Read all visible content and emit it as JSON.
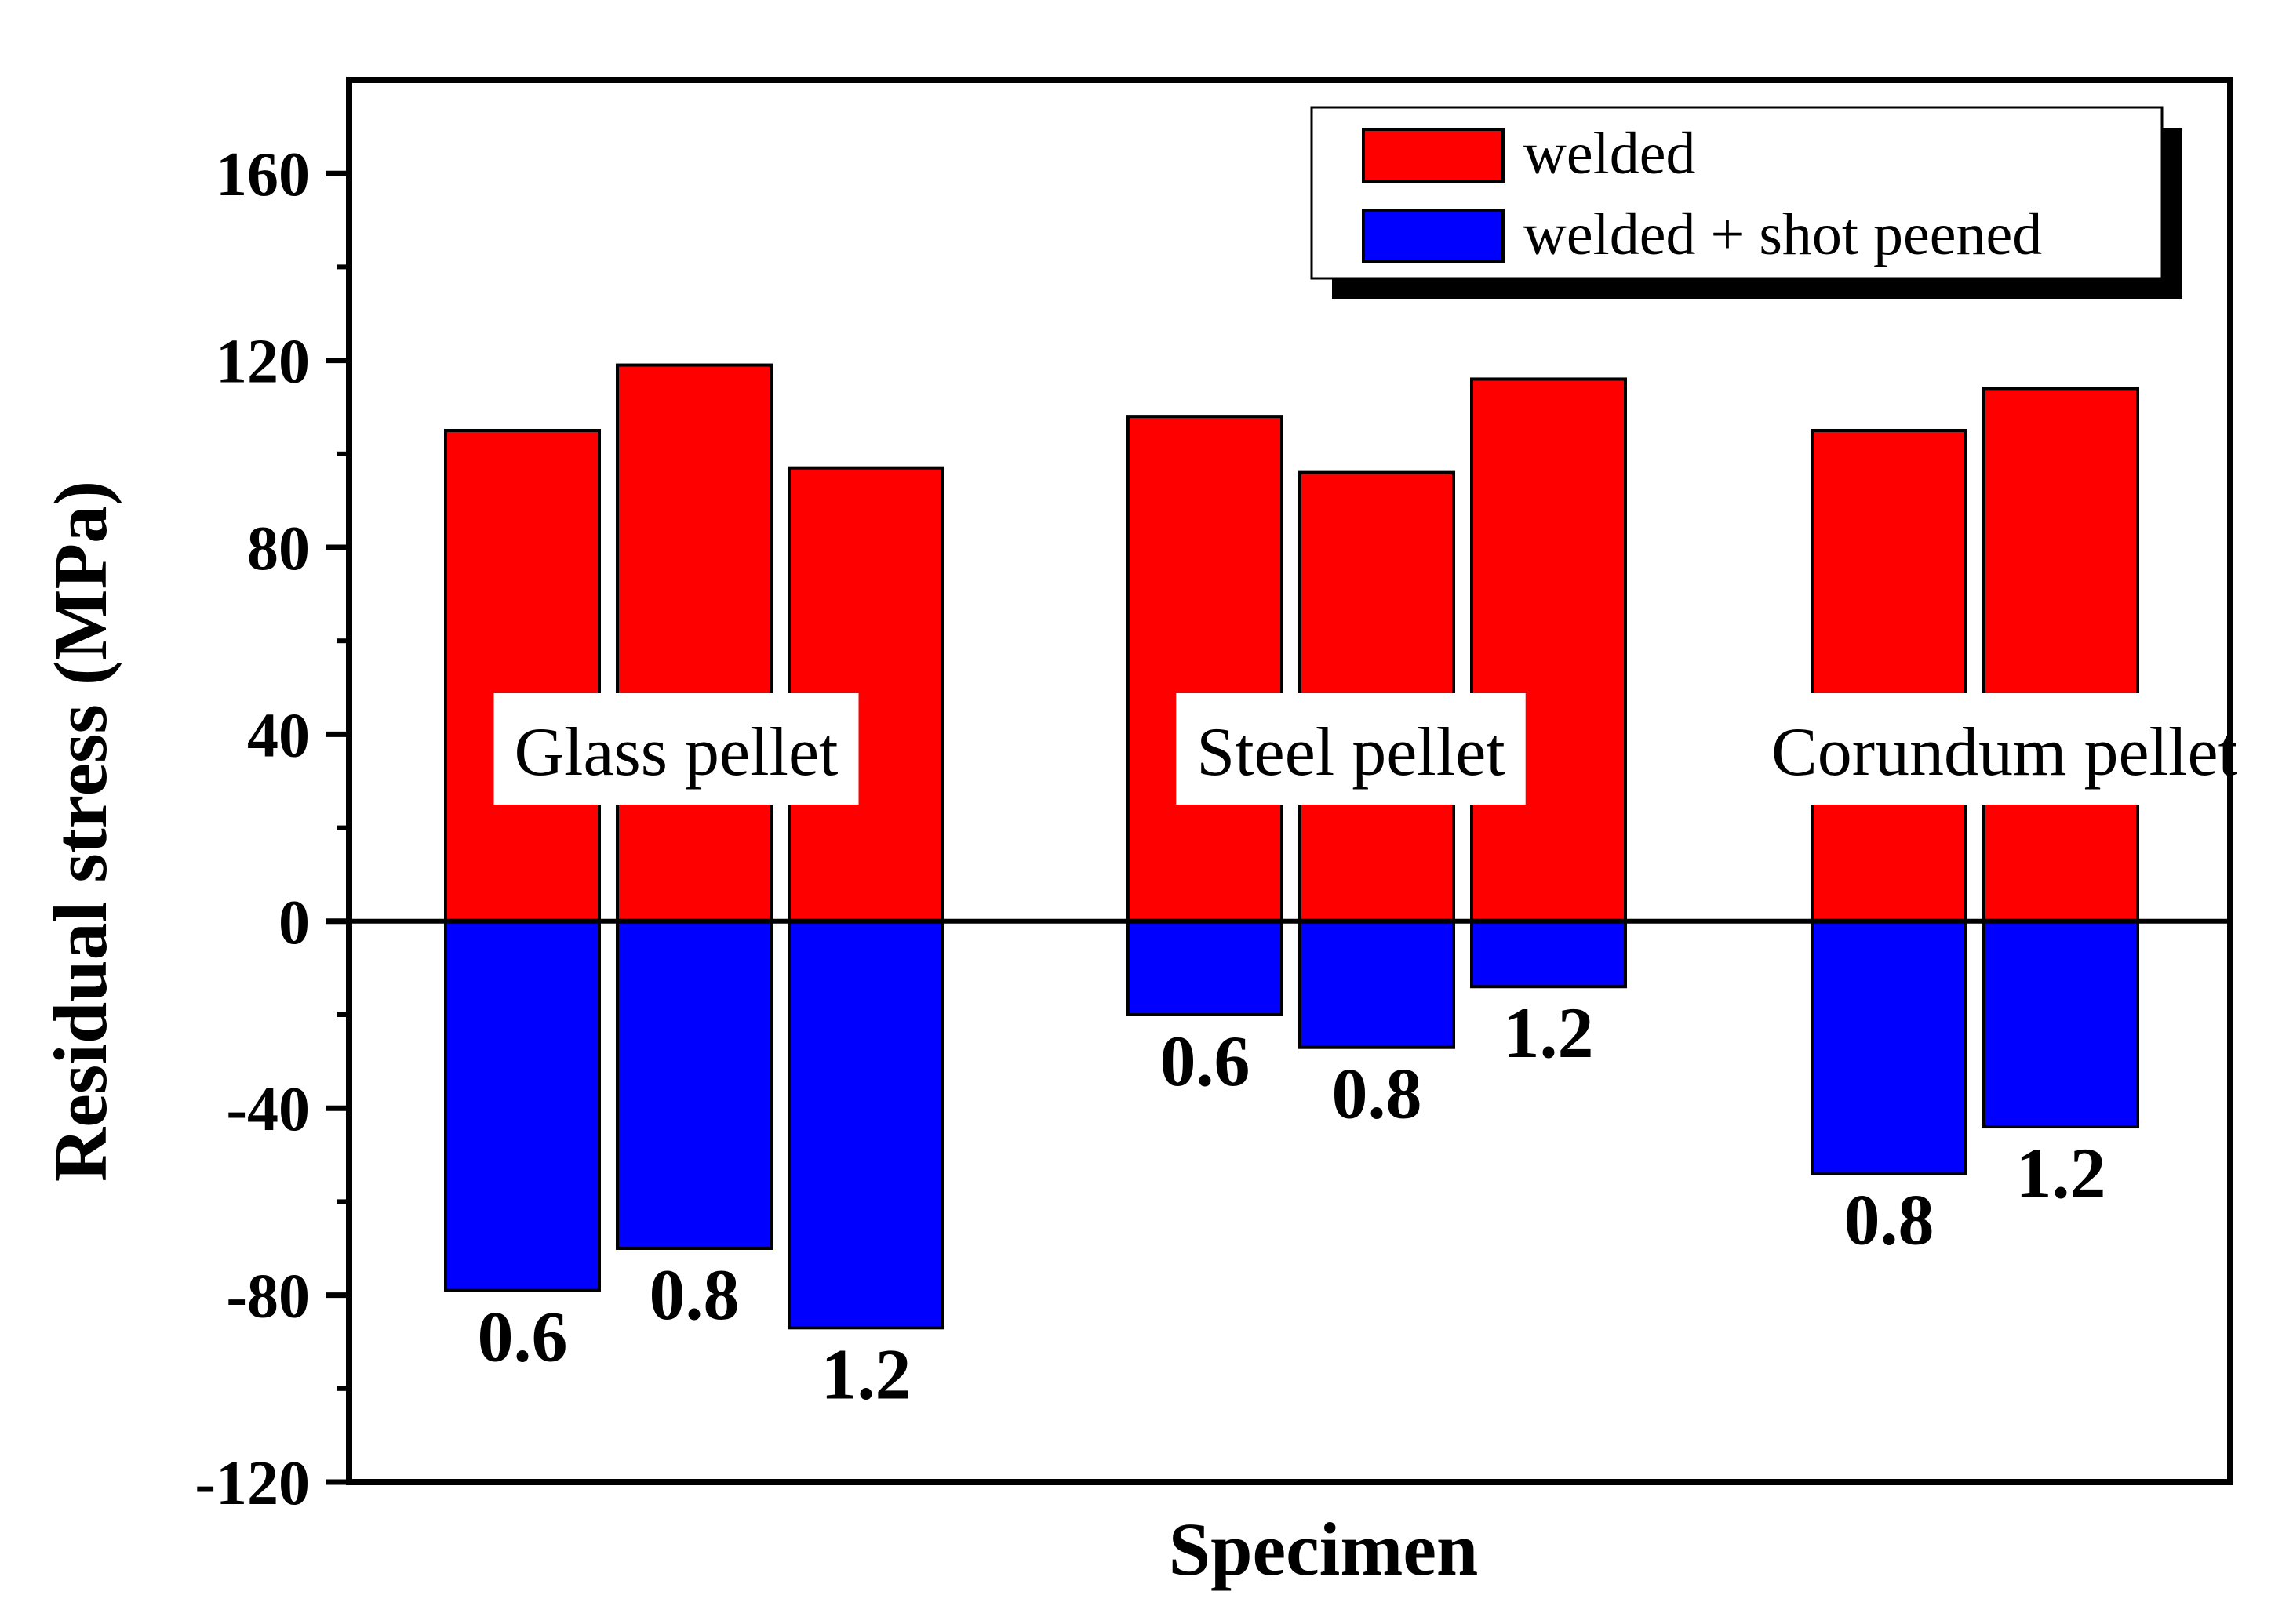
{
  "chart_data": {
    "type": "bar",
    "title": "",
    "xlabel": "Specimen",
    "ylabel": "Residual stress (MPa)",
    "ylim": [
      -120,
      180
    ],
    "yticks": [
      -120,
      -80,
      -40,
      0,
      40,
      80,
      120,
      160
    ],
    "ytick_labels": [
      "-120",
      "-80",
      "-40",
      "0",
      "40",
      "80",
      "120",
      "160"
    ],
    "grid": false,
    "legend_position": "top-right",
    "series": [
      {
        "name": "welded",
        "color": "#ff0000"
      },
      {
        "name": "welded + shot peened",
        "color": "#0000ff"
      }
    ],
    "groups": [
      {
        "name": "Glass pellet",
        "bars": [
          {
            "label": "0.6",
            "welded": 105,
            "welded_shot_peened": -79
          },
          {
            "label": "0.8",
            "welded": 119,
            "welded_shot_peened": -70
          },
          {
            "label": "1.2",
            "welded": 97,
            "welded_shot_peened": -87
          }
        ]
      },
      {
        "name": "Steel pellet",
        "bars": [
          {
            "label": "0.6",
            "welded": 108,
            "welded_shot_peened": -20
          },
          {
            "label": "0.8",
            "welded": 96,
            "welded_shot_peened": -27
          },
          {
            "label": "1.2",
            "welded": 116,
            "welded_shot_peened": -14
          }
        ]
      },
      {
        "name": "Corundum pellet",
        "bars": [
          {
            "label": "0.8",
            "welded": 105,
            "welded_shot_peened": -54
          },
          {
            "label": "1.2",
            "welded": 114,
            "welded_shot_peened": -44
          }
        ]
      }
    ]
  }
}
